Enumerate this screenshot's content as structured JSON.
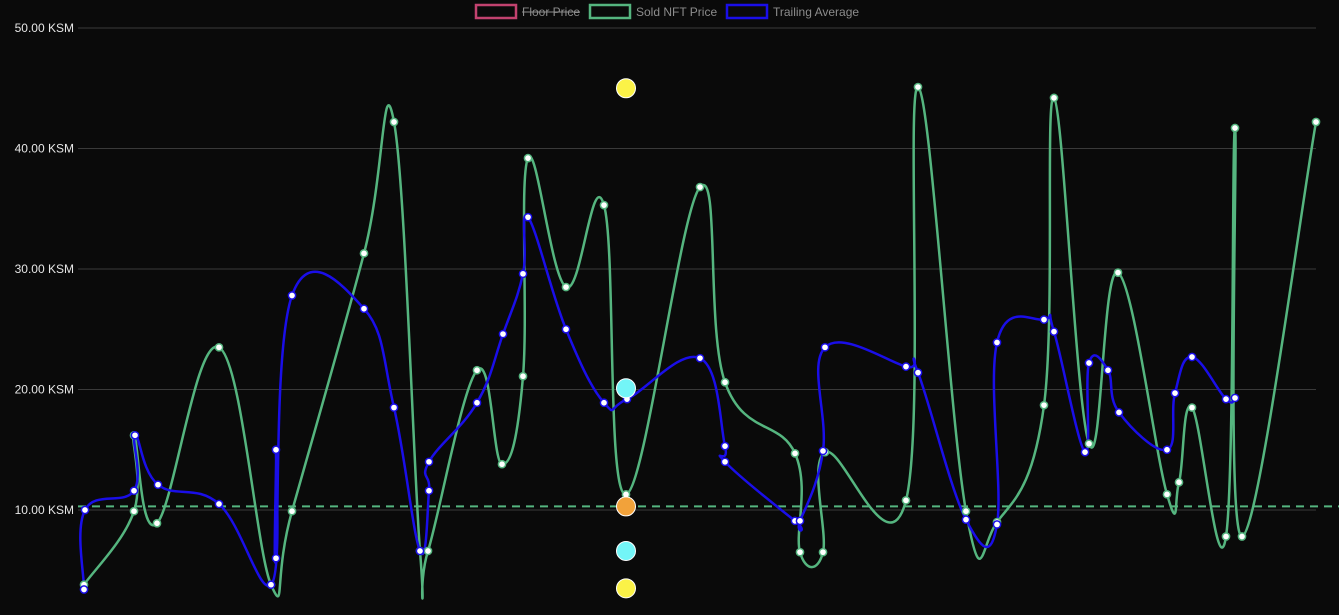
{
  "chart_data": {
    "type": "line",
    "yunit": "KSM",
    "ylim": [
      2,
      50
    ],
    "yticks": [
      "50.00 KSM",
      "40.00 KSM",
      "30.00 KSM",
      "20.00 KSM",
      "10.00 KSM"
    ],
    "ytick_values": [
      50,
      40,
      30,
      20,
      10
    ],
    "grid": true,
    "legend_position": "top-center",
    "legend": [
      {
        "name": "Floor Price",
        "hidden": true,
        "color": "#c2426f"
      },
      {
        "name": "Sold NFT Price",
        "hidden": false,
        "color": "#55b57f"
      },
      {
        "name": "Trailing Average",
        "hidden": false,
        "color": "#1a0ee8"
      }
    ],
    "floor_line_value": 10.3,
    "floor_line_color": "#55b57f",
    "series": [
      {
        "name": "Sold NFT Price",
        "color": "#55b57f",
        "points": [
          [
            84,
            3.8
          ],
          [
            134,
            9.9
          ],
          [
            134,
            16.2
          ],
          [
            157,
            8.9
          ],
          [
            219,
            23.5
          ],
          [
            271,
            3.8
          ],
          [
            292,
            9.9
          ],
          [
            364,
            31.3
          ],
          [
            394,
            42.2
          ],
          [
            420,
            6.6
          ],
          [
            428,
            6.6
          ],
          [
            477,
            21.6
          ],
          [
            502,
            13.8
          ],
          [
            523,
            21.1
          ],
          [
            528,
            39.2
          ],
          [
            566,
            28.5
          ],
          [
            604,
            35.3
          ],
          [
            626,
            11.3
          ],
          [
            700,
            36.8
          ],
          [
            725,
            20.6
          ],
          [
            795,
            14.7
          ],
          [
            800,
            6.5
          ],
          [
            823,
            6.5
          ],
          [
            825,
            14.8
          ],
          [
            906,
            10.8
          ],
          [
            918,
            45.1
          ],
          [
            966,
            9.9
          ],
          [
            997,
            9.0
          ],
          [
            1044,
            18.7
          ],
          [
            1054,
            44.2
          ],
          [
            1089,
            15.5
          ],
          [
            1118,
            29.7
          ],
          [
            1167,
            11.3
          ],
          [
            1179,
            12.3
          ],
          [
            1192,
            18.5
          ],
          [
            1226,
            7.8
          ],
          [
            1235,
            41.7
          ],
          [
            1242,
            7.8
          ],
          [
            1316,
            42.2
          ]
        ]
      },
      {
        "name": "Trailing Average",
        "color": "#1a0ee8",
        "points": [
          [
            84,
            3.4
          ],
          [
            85,
            10.0
          ],
          [
            134,
            11.6
          ],
          [
            135,
            16.2
          ],
          [
            158,
            12.1
          ],
          [
            219,
            10.5
          ],
          [
            271,
            3.8
          ],
          [
            276,
            15.0
          ],
          [
            276,
            6.0
          ],
          [
            292,
            27.8
          ],
          [
            364,
            26.7
          ],
          [
            394,
            18.5
          ],
          [
            420,
            6.6
          ],
          [
            429,
            11.6
          ],
          [
            429,
            14.0
          ],
          [
            477,
            18.9
          ],
          [
            503,
            24.6
          ],
          [
            523,
            29.6
          ],
          [
            528,
            34.3
          ],
          [
            566,
            25.0
          ],
          [
            604,
            18.9
          ],
          [
            627,
            19.2
          ],
          [
            700,
            22.6
          ],
          [
            725,
            15.3
          ],
          [
            725,
            14.0
          ],
          [
            795,
            9.1
          ],
          [
            800,
            9.1
          ],
          [
            823,
            14.9
          ],
          [
            825,
            23.5
          ],
          [
            906,
            21.9
          ],
          [
            918,
            21.4
          ],
          [
            966,
            9.2
          ],
          [
            997,
            8.8
          ],
          [
            997,
            23.9
          ],
          [
            1044,
            25.8
          ],
          [
            1054,
            24.8
          ],
          [
            1085,
            14.8
          ],
          [
            1089,
            22.2
          ],
          [
            1108,
            21.6
          ],
          [
            1119,
            18.1
          ],
          [
            1167,
            15.0
          ],
          [
            1175,
            19.7
          ],
          [
            1192,
            22.7
          ],
          [
            1226,
            19.2
          ],
          [
            1235,
            19.3
          ]
        ]
      }
    ],
    "markers": [
      {
        "x": 626,
        "y": 45.0,
        "color": "#fbf247"
      },
      {
        "x": 626,
        "y": 20.1,
        "color": "#73f5f7"
      },
      {
        "x": 626,
        "y": 10.3,
        "color": "#f2a23a"
      },
      {
        "x": 626,
        "y": 6.6,
        "color": "#73f5f7"
      },
      {
        "x": 626,
        "y": 3.5,
        "color": "#fbf247"
      }
    ]
  }
}
